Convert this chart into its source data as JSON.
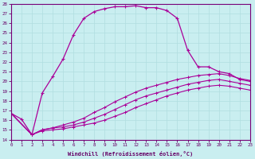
{
  "xlabel": "Windchill (Refroidissement éolien,°C)",
  "xlim": [
    0,
    23
  ],
  "ylim": [
    14,
    28
  ],
  "yticks": [
    14,
    15,
    16,
    17,
    18,
    19,
    20,
    21,
    22,
    23,
    24,
    25,
    26,
    27,
    28
  ],
  "xticks": [
    0,
    1,
    2,
    3,
    4,
    5,
    6,
    7,
    8,
    9,
    10,
    11,
    12,
    13,
    14,
    15,
    16,
    17,
    18,
    19,
    20,
    21,
    22,
    23
  ],
  "background_color": "#c9eef0",
  "grid_color": "#b0dde0",
  "line_color": "#aa0099",
  "curve1_x": [
    0,
    1,
    2,
    3,
    4,
    5,
    6,
    7,
    8,
    9,
    10,
    11,
    12,
    13,
    14,
    15,
    16,
    17,
    18,
    19,
    20,
    21,
    22,
    23
  ],
  "curve1_y": [
    16.7,
    16.1,
    14.5,
    18.8,
    20.5,
    22.3,
    24.8,
    26.5,
    27.2,
    27.5,
    27.7,
    27.7,
    27.8,
    27.6,
    27.6,
    27.3,
    26.5,
    23.2,
    21.5,
    21.5,
    21.0,
    20.8,
    20.2,
    20.0
  ],
  "curve2_x": [
    0,
    2,
    3,
    4,
    5,
    6,
    7,
    8,
    9,
    10,
    11,
    12,
    13,
    14,
    15,
    16,
    17,
    18,
    19,
    20,
    21,
    22,
    23
  ],
  "curve2_y": [
    16.7,
    14.5,
    15.0,
    15.2,
    15.5,
    15.8,
    16.2,
    16.8,
    17.3,
    17.9,
    18.4,
    18.9,
    19.3,
    19.6,
    19.9,
    20.2,
    20.4,
    20.6,
    20.7,
    20.8,
    20.6,
    20.3,
    20.1
  ],
  "curve3_x": [
    0,
    2,
    3,
    4,
    5,
    6,
    7,
    8,
    9,
    10,
    11,
    12,
    13,
    14,
    15,
    16,
    17,
    18,
    19,
    20,
    21,
    22,
    23
  ],
  "curve3_y": [
    16.7,
    14.5,
    15.0,
    15.2,
    15.3,
    15.5,
    15.8,
    16.2,
    16.6,
    17.1,
    17.6,
    18.1,
    18.5,
    18.8,
    19.1,
    19.4,
    19.7,
    19.9,
    20.1,
    20.2,
    20.0,
    19.8,
    19.6
  ],
  "curve4_x": [
    0,
    2,
    3,
    4,
    5,
    6,
    7,
    8,
    9,
    10,
    11,
    12,
    13,
    14,
    15,
    16,
    17,
    18,
    19,
    20,
    21,
    22,
    23
  ],
  "curve4_y": [
    16.7,
    14.5,
    14.9,
    15.0,
    15.1,
    15.3,
    15.5,
    15.7,
    16.0,
    16.4,
    16.8,
    17.3,
    17.7,
    18.1,
    18.5,
    18.8,
    19.1,
    19.3,
    19.5,
    19.6,
    19.5,
    19.3,
    19.1
  ]
}
